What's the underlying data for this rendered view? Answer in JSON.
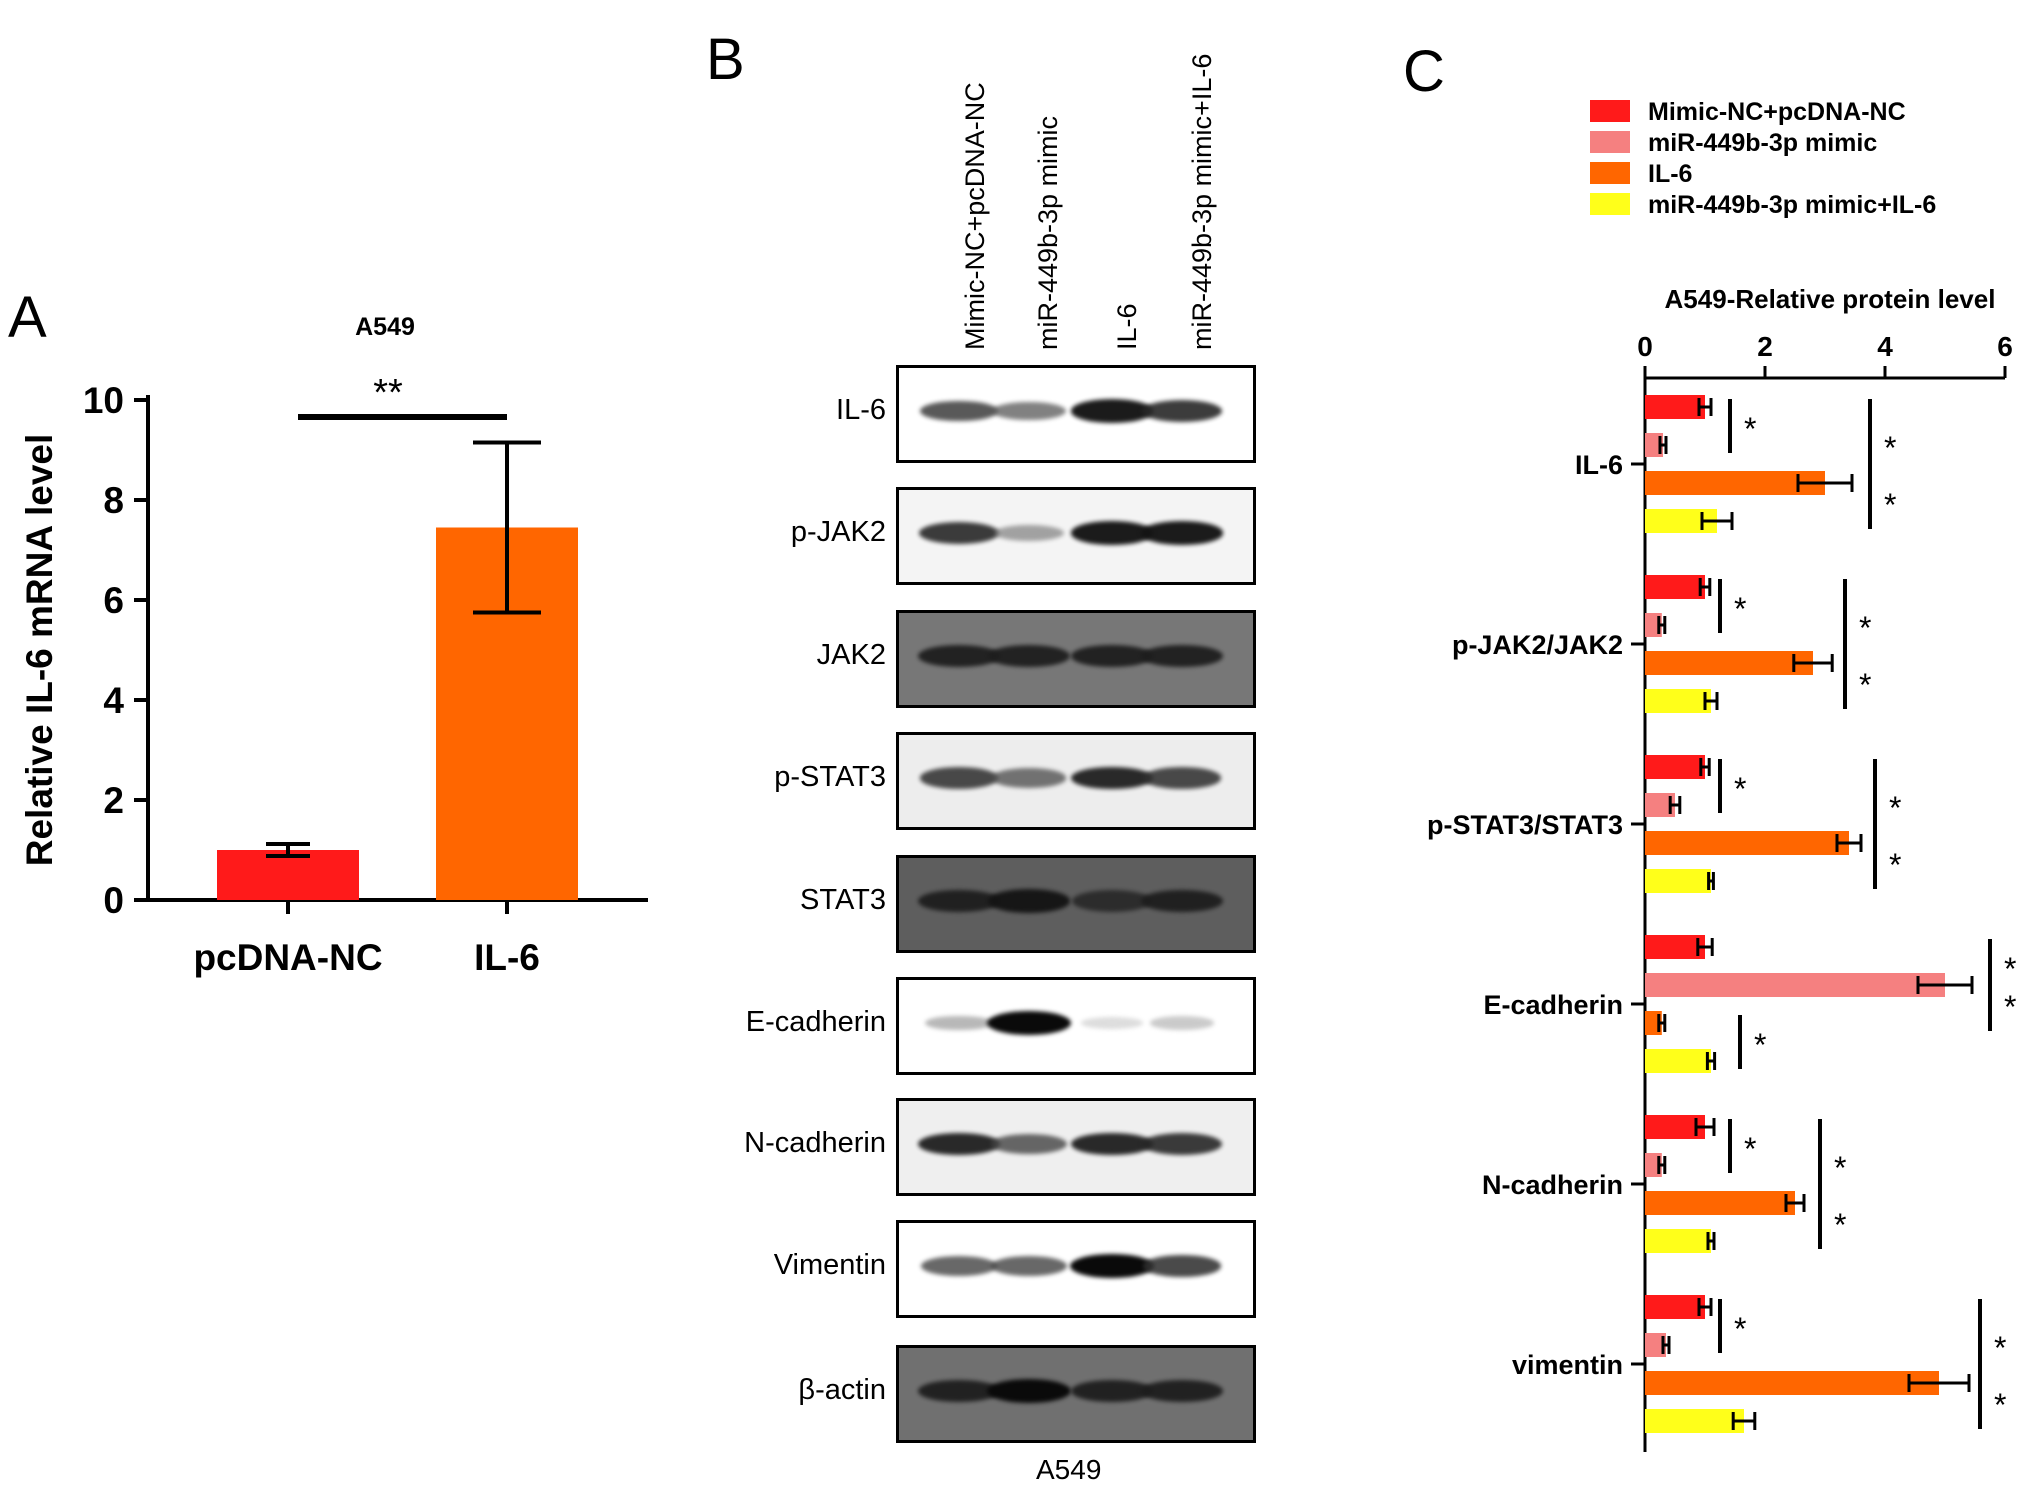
{
  "panel_a": {
    "letter": "A",
    "chart_data": {
      "type": "bar",
      "title": "A549",
      "ylabel": "Relative IL-6 mRNA level",
      "xlabel": "",
      "categories": [
        "pcDNA-NC",
        "IL-6"
      ],
      "values": [
        1.0,
        7.45
      ],
      "errors": [
        0.12,
        1.7
      ],
      "colors": [
        "#ff1a1a",
        "#ff6600"
      ],
      "ylim": [
        0,
        10
      ],
      "yticks": [
        "0",
        "2",
        "4",
        "6",
        "8",
        "10"
      ],
      "significance": "**"
    }
  },
  "panel_b": {
    "letter": "B",
    "lanes": [
      "Mimic-NC+pcDNA-NC",
      "miR-449b-3p mimic",
      "IL-6",
      "miR-449b-3p mimic+IL-6"
    ],
    "blots": [
      {
        "label": "IL-6",
        "bg": "#ffffff",
        "intensity": [
          0.75,
          0.6,
          0.95,
          0.85
        ]
      },
      {
        "label": "p-JAK2",
        "bg": "#f4f4f4",
        "intensity": [
          0.85,
          0.45,
          0.95,
          0.95
        ]
      },
      {
        "label": "JAK2",
        "bg": "#777777",
        "intensity": [
          0.9,
          0.9,
          0.9,
          0.9
        ]
      },
      {
        "label": "p-STAT3",
        "bg": "#ededed",
        "intensity": [
          0.8,
          0.65,
          0.9,
          0.8
        ]
      },
      {
        "label": "STAT3",
        "bg": "#5e5e5e",
        "intensity": [
          0.9,
          0.95,
          0.85,
          0.9
        ]
      },
      {
        "label": "E-cadherin",
        "bg": "#ffffff",
        "intensity": [
          0.35,
          1.0,
          0.12,
          0.25
        ]
      },
      {
        "label": "N-cadherin",
        "bg": "#efefef",
        "intensity": [
          0.9,
          0.7,
          0.9,
          0.85
        ]
      },
      {
        "label": "Vimentin",
        "bg": "#ffffff",
        "intensity": [
          0.7,
          0.7,
          1.0,
          0.8
        ]
      },
      {
        "label": "β-actin",
        "bg": "#707070",
        "intensity": [
          0.9,
          1.0,
          0.9,
          0.9
        ]
      }
    ],
    "cell_line": "A549"
  },
  "panel_c": {
    "letter": "C",
    "chart_data": {
      "type": "bar",
      "orientation": "horizontal",
      "title": "A549-Relative protein level",
      "xlim": [
        0,
        6
      ],
      "xticks": [
        "0",
        "2",
        "4",
        "6"
      ],
      "categories": [
        "IL-6",
        "p-JAK2/JAK2",
        "p-STAT3/STAT3",
        "E-cadherin",
        "N-cadherin",
        "vimentin"
      ],
      "series": [
        {
          "name": "Mimic-NC+pcDNA-NC",
          "color": "#ff1a1a",
          "values": [
            1.0,
            1.0,
            1.0,
            1.0,
            1.0,
            1.0
          ],
          "errors": [
            0.1,
            0.08,
            0.07,
            0.12,
            0.15,
            0.1
          ]
        },
        {
          "name": "miR-449b-3p mimic",
          "color": "#f58080",
          "values": [
            0.3,
            0.28,
            0.5,
            5.0,
            0.28,
            0.35
          ],
          "errors": [
            0.05,
            0.05,
            0.08,
            0.45,
            0.05,
            0.05
          ]
        },
        {
          "name": "IL-6",
          "color": "#ff6600",
          "values": [
            3.0,
            2.8,
            3.4,
            0.28,
            2.5,
            4.9
          ],
          "errors": [
            0.45,
            0.32,
            0.2,
            0.05,
            0.15,
            0.5
          ]
        },
        {
          "name": "miR-449b-3p mimic+IL-6",
          "color": "#ffff1a",
          "values": [
            1.2,
            1.1,
            1.1,
            1.1,
            1.1,
            1.65
          ],
          "errors": [
            0.25,
            0.1,
            0.04,
            0.06,
            0.05,
            0.18
          ]
        }
      ],
      "significance_mark": "*",
      "legend_position": "top"
    }
  }
}
